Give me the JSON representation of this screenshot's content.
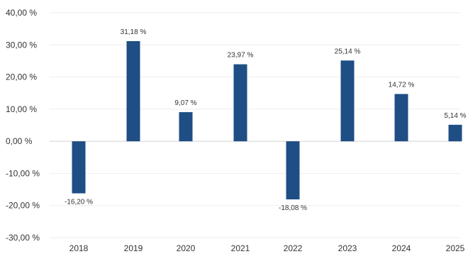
{
  "chart_data": {
    "type": "bar",
    "categories": [
      "2018",
      "2019",
      "2020",
      "2021",
      "2022",
      "2023",
      "2024",
      "2025"
    ],
    "values": [
      -16.2,
      31.18,
      9.07,
      23.97,
      -18.08,
      25.14,
      14.72,
      5.14
    ],
    "value_labels": [
      "-16,20 %",
      "31,18 %",
      "9,07 %",
      "23,97 %",
      "-18,08 %",
      "25,14 %",
      "14,72 %",
      "5,14 %"
    ],
    "y_ticks": [
      40,
      30,
      20,
      10,
      0,
      -10,
      -20,
      -30
    ],
    "y_tick_labels": [
      "40,00 %",
      "30,00 %",
      "20,00 %",
      "10,00 %",
      "0,00 %",
      "-10,00 %",
      "-20,00 %",
      "-30,00 %"
    ],
    "ylim": [
      -30,
      40
    ],
    "title": "",
    "xlabel": "",
    "ylabel": "",
    "grid": true,
    "legend": "none",
    "bar_color": "#1f4e85"
  }
}
